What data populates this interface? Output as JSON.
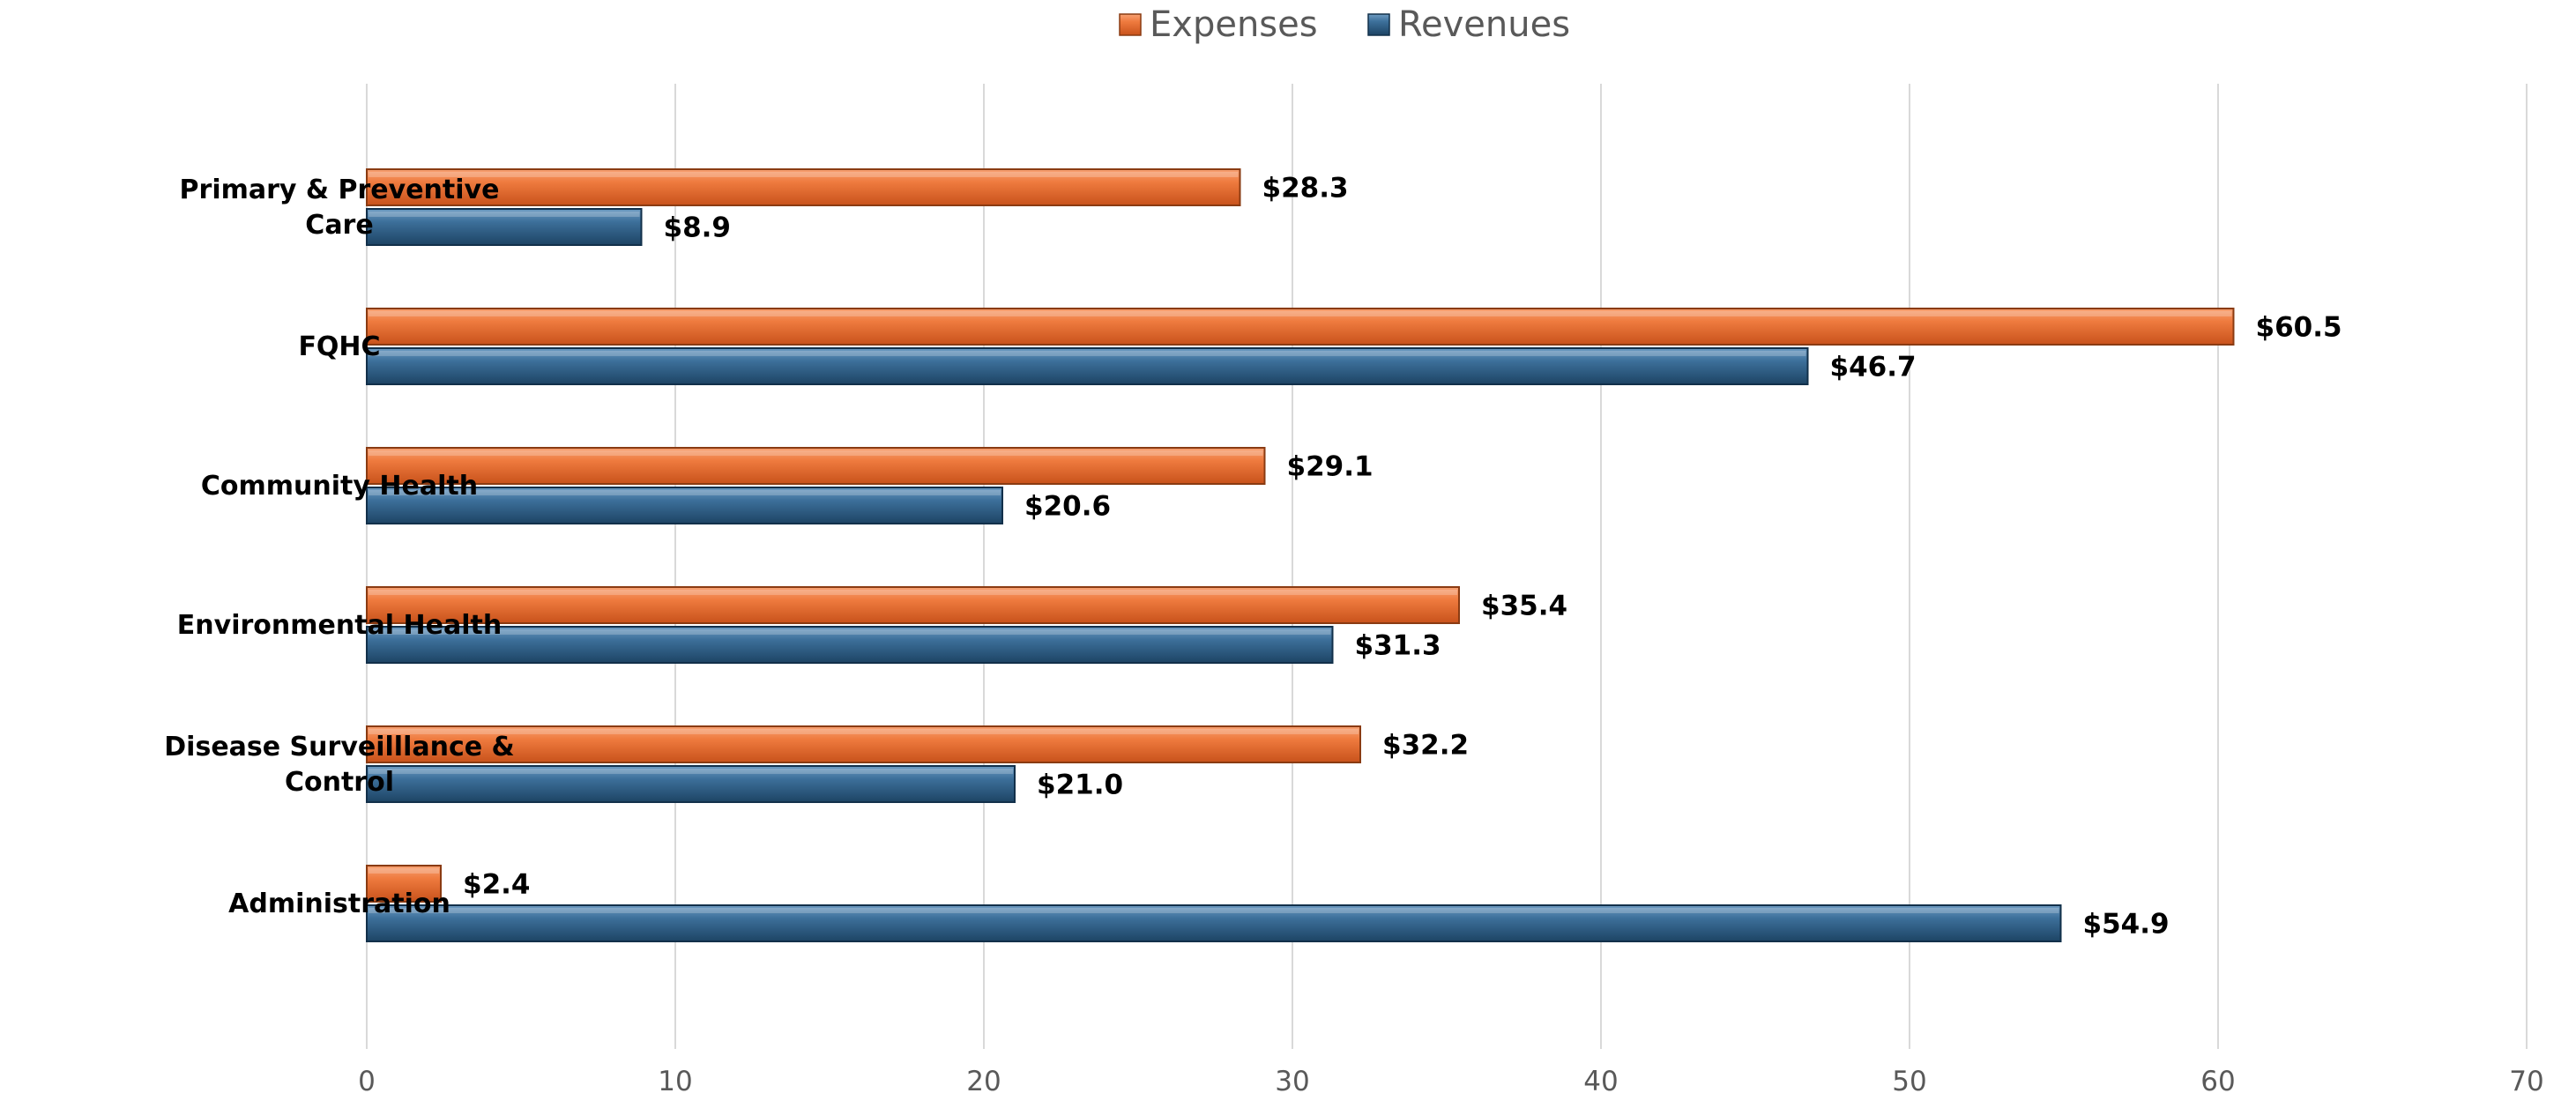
{
  "chart_data": {
    "type": "bar",
    "orientation": "horizontal",
    "categories": [
      "Primary & Preventive Care",
      "FQHC",
      "Community Health",
      "Environmental Health",
      "Disease Surveilllance & Control",
      "Administration"
    ],
    "category_lines": [
      [
        "Primary & Preventive",
        "Care"
      ],
      [
        "FQHC"
      ],
      [
        "Community Health"
      ],
      [
        "Environmental Health"
      ],
      [
        "Disease Surveilllance &",
        "Control"
      ],
      [
        "Administration"
      ]
    ],
    "series": [
      {
        "name": "Expenses",
        "color": "#e96b2c",
        "values": [
          28.3,
          60.5,
          29.1,
          35.4,
          32.2,
          2.4
        ],
        "labels": [
          "$28.3",
          "$60.5",
          "$29.1",
          "$35.4",
          "$32.2",
          "$2.4"
        ]
      },
      {
        "name": "Revenues",
        "color": "#2e5f86",
        "values": [
          8.9,
          46.7,
          20.6,
          31.3,
          21.0,
          54.9
        ],
        "labels": [
          "$8.9",
          "$46.7",
          "$20.6",
          "$31.3",
          "$21.0",
          "$54.9"
        ]
      }
    ],
    "xlim": [
      0,
      70
    ],
    "xticks": [
      "0",
      "10",
      "20",
      "30",
      "40",
      "50",
      "60",
      "70"
    ],
    "grid": "vertical",
    "legend": "top-center",
    "title": "",
    "xlabel": "",
    "ylabel": ""
  }
}
